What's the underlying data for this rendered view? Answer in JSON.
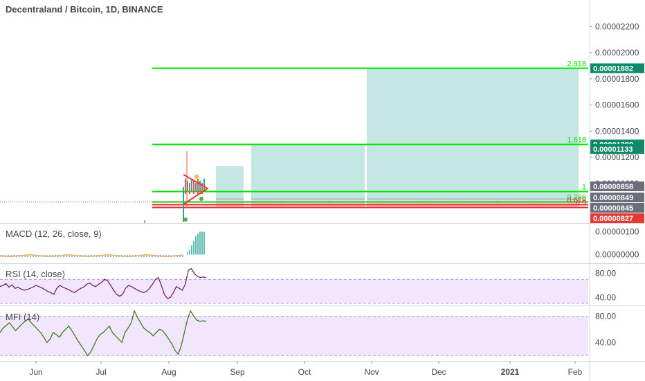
{
  "header": {
    "title": "Decentraland / Bitcoin, 1D, BINANCE"
  },
  "colors": {
    "fib_green": "#00e600",
    "fib_red": "#e62e2e",
    "target_fill": "#b2dfdb",
    "stop_fill": "#f8c6c4",
    "badge_green": "#0e8a6a",
    "badge_gray": "#6b6e7a",
    "badge_red": "#e53935",
    "pane_purple": "#ede0fb",
    "rsi_line": "#7b1f6b",
    "mfi_line": "#3b7a1e",
    "candle_up": "#26a69a",
    "candle_down": "#ef5350"
  },
  "panes": {
    "macd": {
      "title": "MACD (12, 26, close, 9)"
    },
    "rsi": {
      "title": "RSI (14, close)"
    },
    "mfi": {
      "title": "MFI (14)"
    }
  },
  "chart_data": [
    {
      "type": "line",
      "name": "price",
      "title": "Decentraland / Bitcoin, 1D, BINANCE",
      "y_ticks": [
        "0.00002200",
        "0.00002000",
        "0.00001800",
        "0.00001600",
        "0.00001400",
        "0.00001200",
        "0.00001000"
      ],
      "ylim": [
        7.5e-06,
        2.35e-05
      ],
      "x_ticks": [
        "Jun",
        "Jul",
        "Aug",
        "Sep",
        "Oct",
        "Nov",
        "Dec",
        "2021",
        "Feb"
      ],
      "fib_levels": [
        {
          "ratio": "2.618",
          "price": 1.882e-05,
          "badge": "0.00001882",
          "color": "green"
        },
        {
          "ratio": "1.618",
          "price": 1.299e-05,
          "badge": "0.00001299",
          "color": "green"
        },
        {
          "ratio": "1",
          "price": 9.4e-06,
          "badge": "",
          "color": "green"
        },
        {
          "ratio": "0.786",
          "price": 8.6e-06,
          "badge": "",
          "color": "green"
        },
        {
          "ratio": "0.618",
          "price": 8.4e-06,
          "badge": "",
          "color": "red"
        },
        {
          "ratio": "0.5",
          "price": 8.2e-06,
          "badge": "",
          "color": "red"
        }
      ],
      "price_badges": [
        {
          "label": "0.00001133",
          "price": 1.133e-05,
          "color": "green"
        },
        {
          "label": "0.00000858",
          "price": 8.58e-06,
          "color": "gray"
        },
        {
          "label": "0.00000849",
          "price": 8.49e-06,
          "color": "gray"
        },
        {
          "label": "0.00000845",
          "price": 8.45e-06,
          "color": "gray"
        },
        {
          "label": "0.00000827",
          "price": 8.27e-06,
          "color": "red"
        }
      ],
      "positions": [
        {
          "x_start": 0.0,
          "x_end": 0.36,
          "target": 1.133e-05,
          "entry": 8.6e-06,
          "stop": 8.2e-06
        },
        {
          "x_start": 0.42,
          "x_end": 0.78,
          "target": 1.299e-05,
          "entry": 8.6e-06,
          "stop": 8.2e-06
        },
        {
          "x_start": 0.84,
          "x_end": 1.0,
          "target": 1.882e-05,
          "entry": 8.6e-06,
          "stop": 8.2e-06
        }
      ]
    },
    {
      "type": "bar",
      "name": "MACD",
      "y_ticks": [
        "0.00000100",
        "0.00000000"
      ],
      "ylim": [
        -2e-07,
        1.2e-06
      ],
      "histogram": [
        0.0,
        1e-07,
        2e-07,
        4e-07,
        6e-07,
        8e-07,
        9e-07,
        1e-06,
        1e-06,
        1e-06
      ]
    },
    {
      "type": "line",
      "name": "RSI",
      "y_ticks": [
        "80.00",
        "40.00"
      ],
      "ylim": [
        30,
        90
      ],
      "bands": [
        70,
        30
      ],
      "values": [
        58,
        60,
        63,
        57,
        61,
        55,
        57,
        54,
        52,
        53,
        55,
        57,
        60,
        58,
        56,
        53,
        50,
        48,
        45,
        55,
        60,
        57,
        55,
        53,
        50,
        48,
        52,
        55,
        57,
        62,
        64,
        60,
        58,
        62,
        65,
        70,
        68,
        60,
        52,
        45,
        42,
        45,
        55,
        60,
        58,
        55,
        52,
        50,
        48,
        50,
        55,
        62,
        70,
        73,
        60,
        45,
        38,
        40,
        48,
        58,
        55,
        52,
        62,
        85,
        88,
        80,
        75,
        73,
        74,
        73
      ]
    },
    {
      "type": "line",
      "name": "MFI",
      "y_ticks": [
        "80.00",
        "40.00"
      ],
      "ylim": [
        15,
        90
      ],
      "bands": [
        80,
        20
      ],
      "values": [
        55,
        62,
        66,
        70,
        64,
        58,
        63,
        68,
        72,
        76,
        70,
        65,
        60,
        55,
        48,
        40,
        45,
        55,
        52,
        48,
        55,
        60,
        65,
        58,
        50,
        42,
        35,
        28,
        20,
        25,
        35,
        45,
        52,
        55,
        60,
        65,
        55,
        50,
        45,
        40,
        55,
        62,
        70,
        88,
        78,
        70,
        62,
        58,
        55,
        50,
        55,
        60,
        58,
        52,
        45,
        38,
        28,
        22,
        35,
        55,
        75,
        88,
        80,
        74,
        72,
        73,
        72
      ]
    }
  ]
}
